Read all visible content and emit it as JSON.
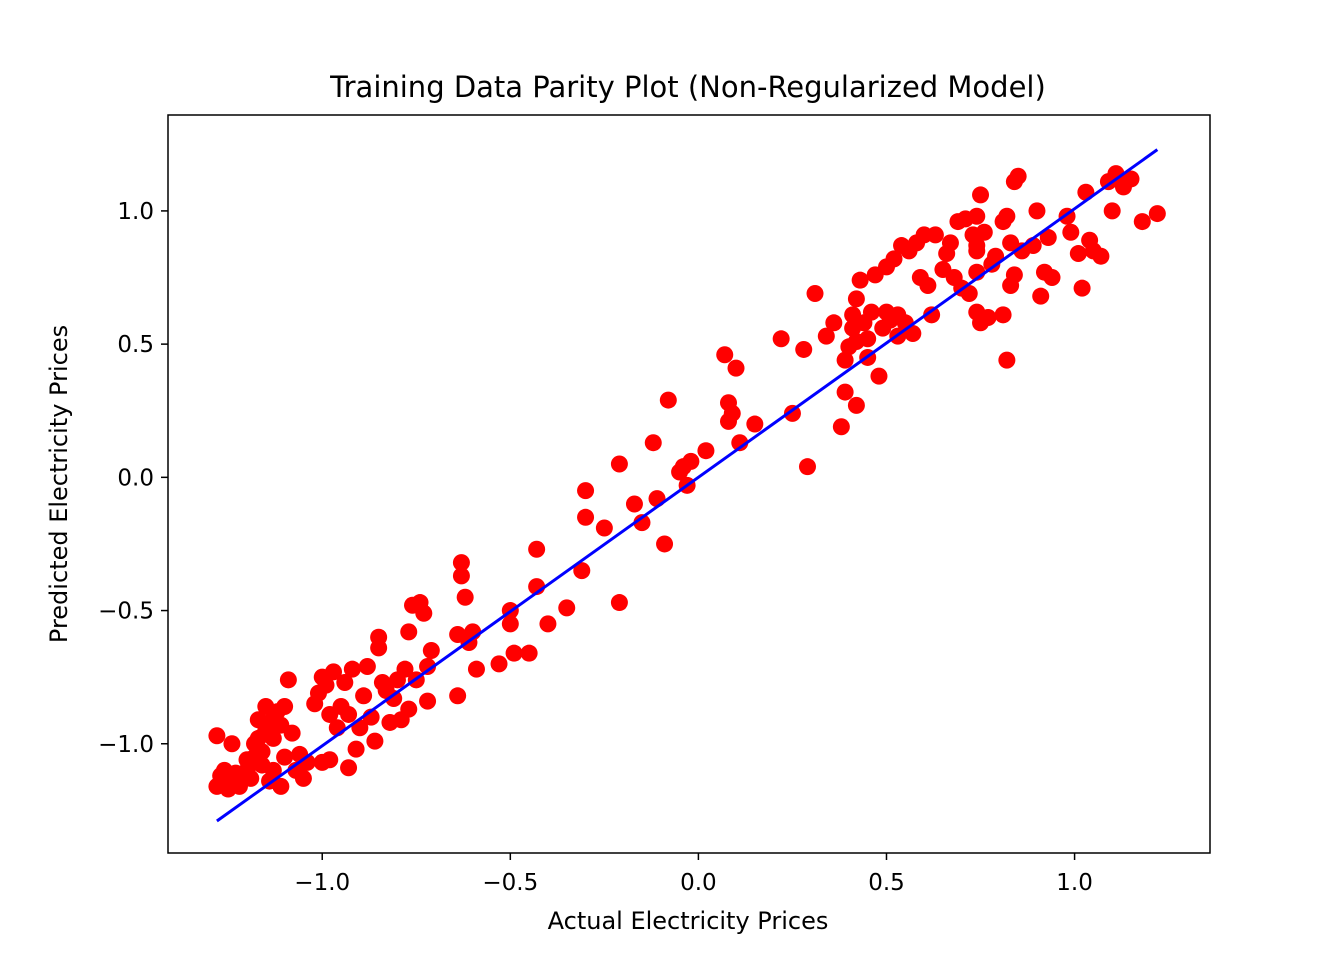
{
  "chart_data": {
    "type": "scatter",
    "title": "Training Data Parity Plot (Non-Regularized Model)",
    "xlabel": "Actual Electricity Prices",
    "ylabel": "Predicted Electricity Prices",
    "xlim": [
      -1.41,
      1.36
    ],
    "ylim": [
      -1.41,
      1.36
    ],
    "xticks": [
      -1.0,
      -0.5,
      0.0,
      0.5,
      1.0
    ],
    "yticks": [
      -1.0,
      -0.5,
      0.0,
      0.5,
      1.0
    ],
    "xtick_labels": [
      "−1.0",
      "−0.5",
      "0.0",
      "0.5",
      "1.0"
    ],
    "ytick_labels": [
      "−1.0",
      "−0.5",
      "0.0",
      "0.5",
      "1.0"
    ],
    "grid": false,
    "legend": "none",
    "series": [
      {
        "kind": "scatter",
        "color": "#ff0000",
        "points": [
          [
            -1.28,
            -0.97
          ],
          [
            -1.28,
            -1.16
          ],
          [
            -1.27,
            -1.12
          ],
          [
            -1.26,
            -1.1
          ],
          [
            -1.25,
            -1.17
          ],
          [
            -1.24,
            -1.0
          ],
          [
            -1.24,
            -1.15
          ],
          [
            -1.23,
            -1.11
          ],
          [
            -1.22,
            -1.16
          ],
          [
            -1.21,
            -1.13
          ],
          [
            -1.2,
            -1.1
          ],
          [
            -1.2,
            -1.06
          ],
          [
            -1.19,
            -1.13
          ],
          [
            -1.18,
            -1.05
          ],
          [
            -1.18,
            -1.0
          ],
          [
            -1.17,
            -0.98
          ],
          [
            -1.17,
            -0.91
          ],
          [
            -1.16,
            -1.08
          ],
          [
            -1.16,
            -1.03
          ],
          [
            -1.15,
            -0.95
          ],
          [
            -1.15,
            -0.86
          ],
          [
            -1.14,
            -1.14
          ],
          [
            -1.14,
            -0.92
          ],
          [
            -1.13,
            -0.98
          ],
          [
            -1.13,
            -1.1
          ],
          [
            -1.12,
            -0.88
          ],
          [
            -1.11,
            -0.93
          ],
          [
            -1.11,
            -1.16
          ],
          [
            -1.1,
            -1.05
          ],
          [
            -1.1,
            -0.86
          ],
          [
            -1.09,
            -0.76
          ],
          [
            -1.08,
            -0.96
          ],
          [
            -1.07,
            -1.1
          ],
          [
            -1.06,
            -1.04
          ],
          [
            -1.05,
            -1.13
          ],
          [
            -1.04,
            -1.07
          ],
          [
            -1.02,
            -0.85
          ],
          [
            -1.01,
            -0.81
          ],
          [
            -1.0,
            -0.75
          ],
          [
            -1.0,
            -1.07
          ],
          [
            -0.99,
            -0.78
          ],
          [
            -0.98,
            -0.89
          ],
          [
            -0.98,
            -1.06
          ],
          [
            -0.97,
            -0.73
          ],
          [
            -0.96,
            -0.94
          ],
          [
            -0.95,
            -0.86
          ],
          [
            -0.94,
            -0.77
          ],
          [
            -0.93,
            -0.89
          ],
          [
            -0.93,
            -1.09
          ],
          [
            -0.92,
            -0.72
          ],
          [
            -0.91,
            -1.02
          ],
          [
            -0.9,
            -0.94
          ],
          [
            -0.89,
            -0.82
          ],
          [
            -0.88,
            -0.71
          ],
          [
            -0.87,
            -0.9
          ],
          [
            -0.86,
            -0.99
          ],
          [
            -0.85,
            -0.6
          ],
          [
            -0.85,
            -0.64
          ],
          [
            -0.84,
            -0.77
          ],
          [
            -0.83,
            -0.8
          ],
          [
            -0.82,
            -0.92
          ],
          [
            -0.81,
            -0.83
          ],
          [
            -0.8,
            -0.76
          ],
          [
            -0.79,
            -0.91
          ],
          [
            -0.78,
            -0.72
          ],
          [
            -0.77,
            -0.87
          ],
          [
            -0.77,
            -0.58
          ],
          [
            -0.76,
            -0.48
          ],
          [
            -0.75,
            -0.76
          ],
          [
            -0.74,
            -0.47
          ],
          [
            -0.73,
            -0.51
          ],
          [
            -0.72,
            -0.84
          ],
          [
            -0.72,
            -0.71
          ],
          [
            -0.71,
            -0.65
          ],
          [
            -0.64,
            -0.59
          ],
          [
            -0.64,
            -0.82
          ],
          [
            -0.63,
            -0.32
          ],
          [
            -0.63,
            -0.37
          ],
          [
            -0.62,
            -0.45
          ],
          [
            -0.61,
            -0.62
          ],
          [
            -0.6,
            -0.58
          ],
          [
            -0.59,
            -0.72
          ],
          [
            -0.53,
            -0.7
          ],
          [
            -0.5,
            -0.5
          ],
          [
            -0.5,
            -0.55
          ],
          [
            -0.49,
            -0.66
          ],
          [
            -0.45,
            -0.66
          ],
          [
            -0.43,
            -0.41
          ],
          [
            -0.43,
            -0.27
          ],
          [
            -0.4,
            -0.55
          ],
          [
            -0.35,
            -0.49
          ],
          [
            -0.31,
            -0.35
          ],
          [
            -0.3,
            -0.05
          ],
          [
            -0.3,
            -0.15
          ],
          [
            -0.25,
            -0.19
          ],
          [
            -0.21,
            0.05
          ],
          [
            -0.21,
            -0.47
          ],
          [
            -0.17,
            -0.1
          ],
          [
            -0.15,
            -0.17
          ],
          [
            -0.12,
            0.13
          ],
          [
            -0.11,
            -0.08
          ],
          [
            -0.09,
            -0.25
          ],
          [
            -0.08,
            0.29
          ],
          [
            -0.05,
            0.02
          ],
          [
            -0.04,
            0.04
          ],
          [
            -0.03,
            -0.03
          ],
          [
            -0.02,
            0.06
          ],
          [
            0.02,
            0.1
          ],
          [
            0.07,
            0.46
          ],
          [
            0.08,
            0.28
          ],
          [
            0.08,
            0.21
          ],
          [
            0.09,
            0.24
          ],
          [
            0.1,
            0.41
          ],
          [
            0.11,
            0.13
          ],
          [
            0.15,
            0.2
          ],
          [
            0.22,
            0.52
          ],
          [
            0.25,
            0.24
          ],
          [
            0.28,
            0.48
          ],
          [
            0.29,
            0.04
          ],
          [
            0.31,
            0.69
          ],
          [
            0.34,
            0.53
          ],
          [
            0.36,
            0.58
          ],
          [
            0.38,
            0.19
          ],
          [
            0.39,
            0.32
          ],
          [
            0.39,
            0.44
          ],
          [
            0.4,
            0.49
          ],
          [
            0.41,
            0.56
          ],
          [
            0.41,
            0.61
          ],
          [
            0.42,
            0.51
          ],
          [
            0.42,
            0.67
          ],
          [
            0.42,
            0.27
          ],
          [
            0.43,
            0.74
          ],
          [
            0.44,
            0.58
          ],
          [
            0.45,
            0.45
          ],
          [
            0.45,
            0.52
          ],
          [
            0.46,
            0.62
          ],
          [
            0.47,
            0.76
          ],
          [
            0.48,
            0.38
          ],
          [
            0.49,
            0.56
          ],
          [
            0.5,
            0.62
          ],
          [
            0.5,
            0.79
          ],
          [
            0.51,
            0.59
          ],
          [
            0.52,
            0.82
          ],
          [
            0.53,
            0.61
          ],
          [
            0.53,
            0.53
          ],
          [
            0.54,
            0.87
          ],
          [
            0.55,
            0.58
          ],
          [
            0.56,
            0.85
          ],
          [
            0.57,
            0.54
          ],
          [
            0.58,
            0.88
          ],
          [
            0.59,
            0.75
          ],
          [
            0.6,
            0.91
          ],
          [
            0.61,
            0.72
          ],
          [
            0.62,
            0.61
          ],
          [
            0.63,
            0.91
          ],
          [
            0.65,
            0.78
          ],
          [
            0.66,
            0.84
          ],
          [
            0.67,
            0.88
          ],
          [
            0.68,
            0.75
          ],
          [
            0.69,
            0.96
          ],
          [
            0.7,
            0.71
          ],
          [
            0.71,
            0.97
          ],
          [
            0.72,
            0.69
          ],
          [
            0.73,
            0.91
          ],
          [
            0.74,
            0.87
          ],
          [
            0.74,
            0.85
          ],
          [
            0.74,
            0.62
          ],
          [
            0.74,
            0.77
          ],
          [
            0.74,
            0.98
          ],
          [
            0.75,
            0.58
          ],
          [
            0.75,
            1.06
          ],
          [
            0.76,
            0.92
          ],
          [
            0.77,
            0.6
          ],
          [
            0.78,
            0.8
          ],
          [
            0.79,
            0.83
          ],
          [
            0.81,
            0.96
          ],
          [
            0.81,
            0.61
          ],
          [
            0.82,
            0.98
          ],
          [
            0.82,
            0.44
          ],
          [
            0.83,
            0.72
          ],
          [
            0.83,
            0.88
          ],
          [
            0.84,
            0.76
          ],
          [
            0.84,
            1.11
          ],
          [
            0.85,
            1.13
          ],
          [
            0.86,
            0.85
          ],
          [
            0.89,
            0.87
          ],
          [
            0.9,
            1.0
          ],
          [
            0.91,
            0.68
          ],
          [
            0.92,
            0.77
          ],
          [
            0.93,
            0.9
          ],
          [
            0.94,
            0.75
          ],
          [
            0.98,
            0.98
          ],
          [
            0.99,
            0.92
          ],
          [
            1.01,
            0.84
          ],
          [
            1.02,
            0.71
          ],
          [
            1.03,
            1.07
          ],
          [
            1.04,
            0.89
          ],
          [
            1.05,
            0.85
          ],
          [
            1.07,
            0.83
          ],
          [
            1.09,
            1.11
          ],
          [
            1.1,
            1.0
          ],
          [
            1.11,
            1.14
          ],
          [
            1.13,
            1.09
          ],
          [
            1.15,
            1.12
          ],
          [
            1.18,
            0.96
          ],
          [
            1.22,
            0.99
          ]
        ]
      },
      {
        "kind": "line",
        "color": "#0000ff",
        "x": [
          -1.28,
          1.22
        ],
        "y": [
          -1.29,
          1.23
        ]
      }
    ]
  }
}
